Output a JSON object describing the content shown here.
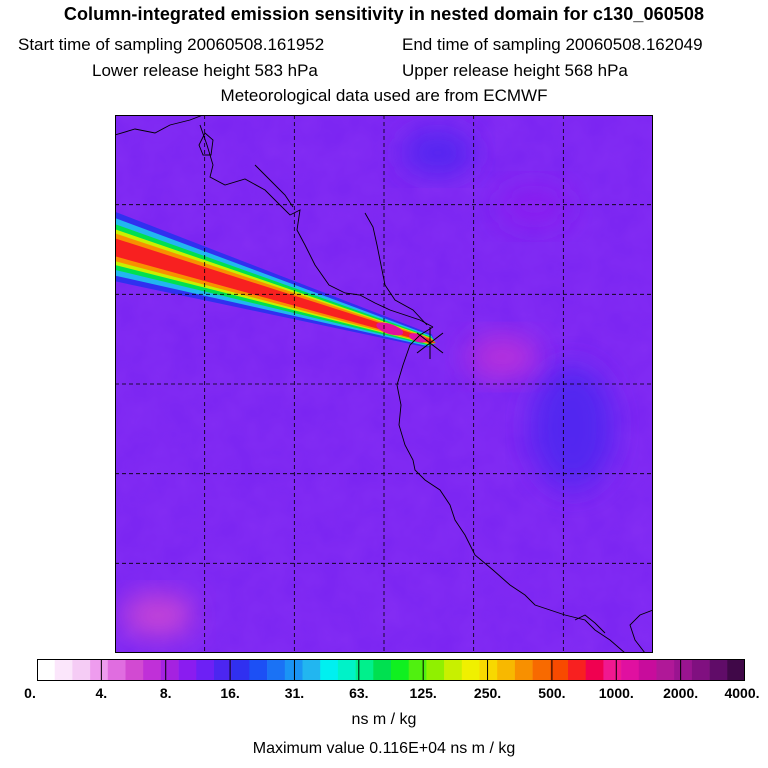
{
  "chart_data": {
    "type": "heatmap",
    "title": "Column-integrated emission sensitivity in nested domain for c130_060508",
    "subtitle_lines": {
      "start": "Start time of sampling 20060508.161952",
      "end": "End time of sampling 20060508.162049",
      "lower": "Lower release height  583 hPa",
      "upper": "Upper release height  568 hPa",
      "met": "Meteorological data used are from ECMWF"
    },
    "colorbar": {
      "tick_labels": [
        "0.",
        "4.",
        "8.",
        "16.",
        "31.",
        "63.",
        "125.",
        "250.",
        "500.",
        "1000.",
        "2000.",
        "4000."
      ],
      "colors": [
        "#ffffff",
        "#fbe6fb",
        "#f5ccf5",
        "#ee9cee",
        "#e06de0",
        "#d24ad2",
        "#c030d8",
        "#a522e0",
        "#8a1cf0",
        "#6d20f5",
        "#4c26f0",
        "#3030f0",
        "#1c50f5",
        "#1a72f5",
        "#1a94f5",
        "#22b6f0",
        "#00f0f0",
        "#00f2c8",
        "#00f08c",
        "#00e050",
        "#10f020",
        "#50f010",
        "#90f000",
        "#c8f000",
        "#f0f000",
        "#f8d800",
        "#f8b800",
        "#f89000",
        "#f86a00",
        "#f84a00",
        "#f82020",
        "#f00050",
        "#f01890",
        "#e010a0",
        "#c80c9c",
        "#b01898",
        "#9a1490",
        "#801080",
        "#600c68",
        "#400848"
      ],
      "units": "ns m / kg"
    },
    "max_value_text": "Maximum value  0.116E+04 ns m / kg",
    "field": {
      "background_level": 8,
      "plume": {
        "start_xy": [
          0.0,
          0.235
        ],
        "end_xy": [
          0.585,
          0.42
        ],
        "peak_value": 1160
      },
      "low_regions": [
        {
          "cx": 0.85,
          "cy": 0.58,
          "value": 16
        },
        {
          "cx": 0.6,
          "cy": 0.07,
          "value": 16
        },
        {
          "cx": 0.78,
          "cy": 0.17,
          "value": 11
        }
      ],
      "high_regions": [
        {
          "cx": 0.08,
          "cy": 0.93,
          "value": 6
        },
        {
          "cx": 0.72,
          "cy": 0.45,
          "value": 7
        }
      ]
    },
    "receptor_marker": "receptor-location"
  }
}
